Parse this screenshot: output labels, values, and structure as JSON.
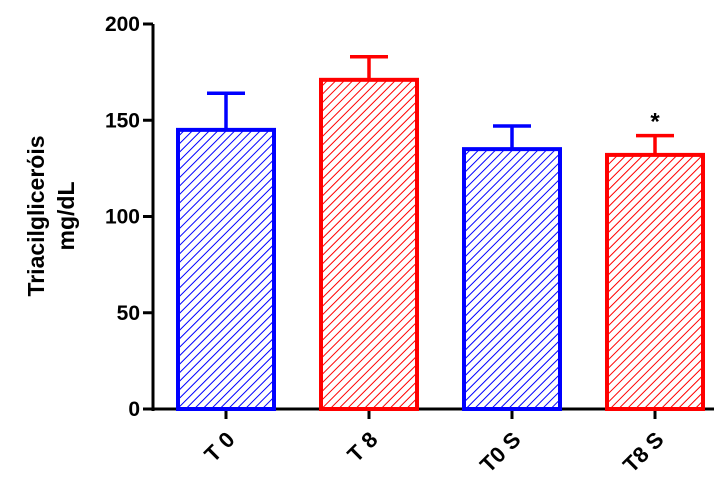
{
  "chart_data": {
    "type": "bar",
    "categories": [
      "T 0",
      "T 8",
      "T0 S",
      "T8 S"
    ],
    "values": [
      145,
      171,
      135,
      132
    ],
    "errors": [
      19,
      12,
      12,
      10
    ],
    "colors": [
      "#0000ff",
      "#ff0000",
      "#0000ff",
      "#ff0000"
    ],
    "fill_pattern": "diagonal-hatch",
    "annotations": [
      "",
      "",
      "",
      "*"
    ],
    "ylabel_line1": "Triacilglicerόis",
    "ylabel_line2": "mg/dL",
    "xlabel": "",
    "ylim": [
      0,
      200
    ],
    "yticks": [
      0,
      50,
      100,
      150,
      200
    ],
    "grid": false,
    "legend": "none"
  }
}
